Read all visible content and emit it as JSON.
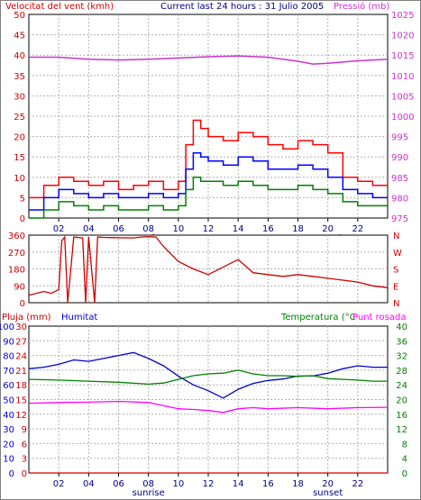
{
  "header": {
    "left_title": "Velocitat del vent (kmh)",
    "center_title": "Current last 24 hours : 31 Julio 2005",
    "right_title": "Pressió (mb)"
  },
  "colors": {
    "wind_peak": "#ff0000",
    "wind_avg": "#0000ff",
    "wind_low": "#008000",
    "pressure": "#cc33cc",
    "direction": "#cc0000",
    "humidity": "#0000cc",
    "temperature": "#008000",
    "dewpoint": "#ff00ff",
    "rain": "#cc0000"
  },
  "chart_data": [
    {
      "type": "line",
      "panel": "wind_pressure",
      "title": "Velocitat del vent (kmh)",
      "y_left": {
        "label": "Velocitat del vent (kmh)",
        "ticks": [
          0,
          5,
          10,
          15,
          20,
          25,
          30,
          35,
          40,
          45,
          50
        ],
        "range": [
          0,
          50
        ]
      },
      "y_right": {
        "label": "Pressió (mb)",
        "ticks": [
          975,
          980,
          985,
          990,
          995,
          1000,
          1005,
          1010,
          1015,
          1020,
          1025
        ],
        "range": [
          975,
          1025
        ]
      },
      "x": {
        "range": [
          0,
          24
        ],
        "tick_labels": [
          "02",
          "04",
          "06",
          "08",
          "10",
          "12",
          "14",
          "16",
          "18",
          "20",
          "22"
        ],
        "tick_values": [
          2,
          4,
          6,
          8,
          10,
          12,
          14,
          16,
          18,
          20,
          22
        ]
      },
      "annotations": [
        {
          "text": "sunrise",
          "x": 8
        },
        {
          "text": "sunset",
          "x": 20
        }
      ],
      "grid": true,
      "series": [
        {
          "series_key": "wind_peak",
          "axis": "left",
          "x": [
            0,
            1,
            2,
            3,
            4,
            5,
            6,
            7,
            8,
            9,
            10,
            10.5,
            11,
            11.5,
            12,
            13,
            14,
            15,
            16,
            17,
            18,
            19,
            20,
            21,
            22,
            23,
            24
          ],
          "values": [
            5,
            8,
            10,
            9,
            8,
            9,
            7,
            8,
            9,
            7,
            9,
            18,
            24,
            22,
            20,
            19,
            21,
            20,
            18,
            17,
            19,
            18,
            16,
            10,
            9,
            8,
            8
          ]
        },
        {
          "series_key": "wind_avg",
          "axis": "left",
          "x": [
            0,
            1,
            2,
            3,
            4,
            5,
            6,
            7,
            8,
            9,
            10,
            10.5,
            11,
            11.5,
            12,
            13,
            14,
            15,
            16,
            17,
            18,
            19,
            20,
            21,
            22,
            23,
            24
          ],
          "values": [
            2,
            5,
            7,
            6,
            5,
            6,
            5,
            5,
            6,
            5,
            6,
            12,
            16,
            15,
            14,
            13,
            15,
            14,
            12,
            12,
            13,
            12,
            10,
            7,
            6,
            5,
            5
          ]
        },
        {
          "series_key": "wind_low",
          "axis": "left",
          "x": [
            0,
            1,
            2,
            3,
            4,
            5,
            6,
            7,
            8,
            9,
            10,
            10.5,
            11,
            11.5,
            12,
            13,
            14,
            15,
            16,
            17,
            18,
            19,
            20,
            21,
            22,
            23,
            24
          ],
          "values": [
            0,
            2,
            4,
            3,
            2,
            3,
            2,
            2,
            3,
            2,
            3,
            7,
            10,
            9,
            9,
            8,
            9,
            8,
            7,
            7,
            8,
            7,
            6,
            4,
            3,
            3,
            3
          ]
        },
        {
          "series_key": "pressure",
          "axis": "right",
          "x": [
            0,
            2,
            4,
            6,
            8,
            10,
            12,
            14,
            16,
            18,
            19,
            20,
            22,
            24
          ],
          "values": [
            1014.5,
            1014.5,
            1014,
            1013.8,
            1014,
            1014.3,
            1014.6,
            1014.8,
            1014.5,
            1013.5,
            1012.8,
            1013,
            1013.6,
            1014
          ]
        }
      ]
    },
    {
      "type": "line",
      "panel": "wind_direction",
      "y_left": {
        "ticks": [
          0,
          90,
          180,
          270,
          360
        ],
        "range": [
          0,
          360
        ]
      },
      "y_right": {
        "ticks": [
          "N",
          "W",
          "S",
          "E",
          "N"
        ]
      },
      "x": {
        "range": [
          0,
          24
        ]
      },
      "grid": true,
      "series": [
        {
          "series_key": "direction",
          "x": [
            0,
            1,
            1.5,
            2,
            2.2,
            2.4,
            2.6,
            3,
            3.6,
            3.8,
            4,
            4.4,
            4.6,
            5,
            6,
            7,
            7.5,
            8,
            8.5,
            9,
            10,
            11,
            12,
            13,
            14,
            15,
            16,
            17,
            18,
            19,
            20,
            21,
            22,
            23,
            24
          ],
          "values": [
            40,
            60,
            50,
            70,
            330,
            350,
            0,
            350,
            345,
            0,
            350,
            0,
            350,
            348,
            346,
            345,
            350,
            352,
            350,
            300,
            220,
            180,
            150,
            190,
            230,
            160,
            150,
            140,
            150,
            140,
            130,
            120,
            110,
            90,
            80
          ]
        }
      ]
    },
    {
      "type": "line",
      "panel": "rain_humidity_temp",
      "y_left1": {
        "label": "Pluja (mm)",
        "ticks": [
          0,
          3,
          6,
          9,
          12,
          15,
          18,
          21,
          24,
          27,
          30
        ],
        "range": [
          0,
          30
        ]
      },
      "y_left2": {
        "label": "Humitat",
        "ticks": [
          0,
          10,
          20,
          30,
          40,
          50,
          60,
          70,
          80,
          90,
          100
        ],
        "range": [
          0,
          100
        ]
      },
      "y_right": {
        "label": "Temperatura (°C",
        "label2": "Punt rosada",
        "ticks": [
          0,
          4,
          8,
          12,
          16,
          20,
          24,
          28,
          32,
          36,
          40
        ],
        "range": [
          0,
          40
        ]
      },
      "x": {
        "range": [
          0,
          24
        ],
        "tick_labels": [
          "02",
          "04",
          "06",
          "08",
          "10",
          "12",
          "14",
          "16",
          "18",
          "20",
          "22"
        ],
        "tick_values": [
          2,
          4,
          6,
          8,
          10,
          12,
          14,
          16,
          18,
          20,
          22
        ]
      },
      "annotations": [
        {
          "text": "sunrise",
          "x": 8
        },
        {
          "text": "sunset",
          "x": 20
        }
      ],
      "grid": true,
      "series": [
        {
          "series_key": "humidity",
          "axis": "left2",
          "x": [
            0,
            1,
            2,
            3,
            4,
            5,
            6,
            7,
            8,
            9,
            10,
            11,
            12,
            13,
            14,
            15,
            16,
            17,
            18,
            19,
            20,
            21,
            22,
            23,
            24
          ],
          "values": [
            71,
            72,
            74,
            77,
            76,
            78,
            80,
            82,
            78,
            73,
            66,
            60,
            56,
            51,
            57,
            61,
            63,
            64,
            66,
            66,
            68,
            71,
            73,
            72,
            72
          ]
        },
        {
          "series_key": "temperature",
          "axis": "right",
          "x": [
            0,
            2,
            4,
            6,
            8,
            9,
            10,
            11,
            12,
            13,
            14,
            15,
            16,
            17,
            18,
            19,
            20,
            21,
            22,
            23,
            24
          ],
          "values": [
            25.5,
            25.3,
            25,
            24.7,
            24.2,
            24.5,
            25.5,
            26.5,
            27,
            27.2,
            28,
            27,
            26.5,
            26.5,
            26.3,
            26.5,
            25.7,
            25.5,
            25.3,
            25,
            25
          ]
        },
        {
          "series_key": "dewpoint",
          "axis": "right",
          "x": [
            0,
            2,
            4,
            6,
            8,
            10,
            11,
            12,
            13,
            14,
            15,
            16,
            18,
            20,
            22,
            24
          ],
          "values": [
            19,
            19.2,
            19.3,
            19.5,
            19.2,
            17.5,
            17.3,
            17,
            16.5,
            17.5,
            17.8,
            17.5,
            17.8,
            17.5,
            17.8,
            17.9
          ]
        },
        {
          "series_key": "rain",
          "axis": "left1",
          "x": [
            0,
            24
          ],
          "values": [
            0,
            0
          ]
        }
      ]
    }
  ]
}
